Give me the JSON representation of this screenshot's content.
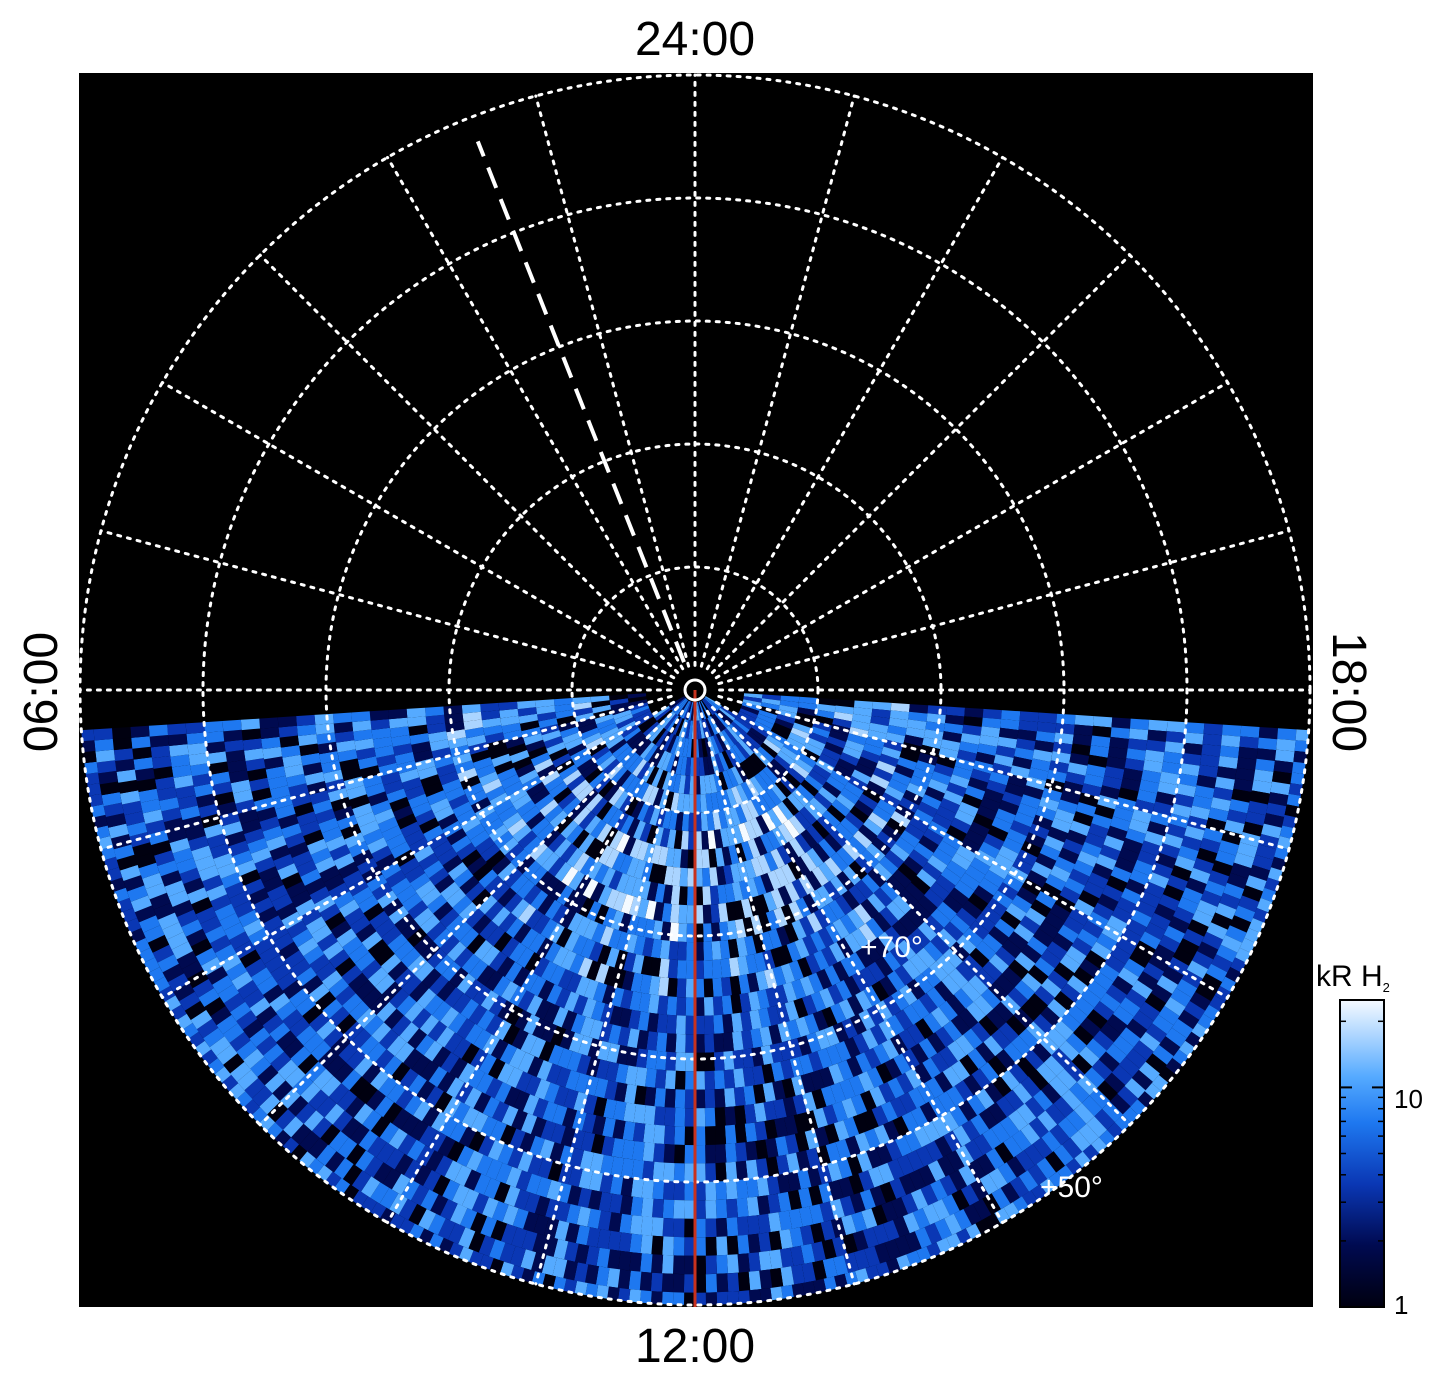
{
  "chart_data": {
    "type": "heatmap",
    "projection": "polar",
    "title": "",
    "local_time_labels": {
      "top": "24:00",
      "bottom": "12:00",
      "left": "06:00",
      "right": "18:00"
    },
    "latitude_labels": [
      "+70°",
      "+50°"
    ],
    "latitude_grid_deg": [
      90,
      80,
      70,
      60,
      50,
      40
    ],
    "local_time_grid_hours": [
      0,
      1,
      2,
      3,
      4,
      5,
      6,
      7,
      8,
      9,
      10,
      11,
      12,
      13,
      14,
      15,
      16,
      17,
      18,
      19,
      20,
      21,
      22,
      23
    ],
    "coverage": "dayside hemisphere (06:00 through 12:00 to 18:00)",
    "grid": true,
    "colorbar": {
      "title": "kR H",
      "title_subscript": "2",
      "scale": "log",
      "range": [
        1,
        25
      ],
      "tick_labels": [
        "1",
        "10"
      ],
      "tick_values": [
        1,
        10
      ],
      "placement": "right"
    },
    "colors": {
      "background": "#000000",
      "grid": "#ffffff",
      "noon_meridian": "#c8321e",
      "colormap": [
        "#000010",
        "#000a50",
        "#0a37b4",
        "#1e78f0",
        "#55aaff",
        "#aad4ff",
        "#f5faff"
      ]
    }
  }
}
